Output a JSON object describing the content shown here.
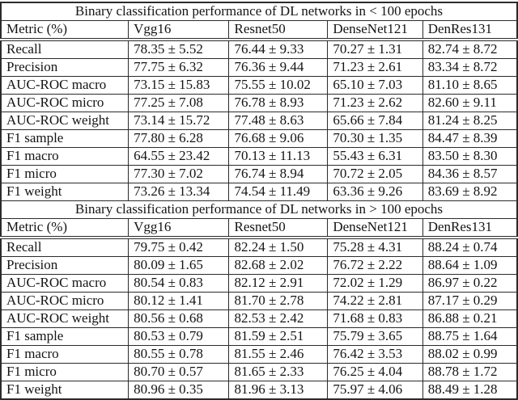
{
  "page": {
    "background_color": "#ffffff",
    "border_color": "#2b2b2b",
    "text_color": "#141414"
  },
  "tables": [
    {
      "title": "Binary classification performance of DL networks in < 100 epochs",
      "columns": [
        "Metric (%)",
        "Vgg16",
        "Resnet50",
        "DenseNet121",
        "DenRes131"
      ],
      "rows": [
        [
          "Recall",
          "78.35 ± 5.52",
          "76.44 ± 9.33",
          "70.27 ± 1.31",
          "82.74 ± 8.72"
        ],
        [
          "Precision",
          "77.75 ± 6.32",
          "76.36 ± 9.44",
          "71.23 ± 2.61",
          "83.34 ± 8.72"
        ],
        [
          "AUC-ROC macro",
          "73.15 ± 15.83",
          "75.55 ± 10.02",
          "65.10 ± 7.03",
          "81.10 ± 8.65"
        ],
        [
          "AUC-ROC micro",
          "77.25 ± 7.08",
          "76.78 ± 8.93",
          "71.23 ± 2.62",
          "82.60 ± 9.11"
        ],
        [
          "AUC-ROC weight",
          "73.14 ± 15.72",
          "77.48 ± 8.63",
          "65.66 ± 7.84",
          "81.24 ± 8.25"
        ],
        [
          "F1 sample",
          "77.80 ± 6.28",
          "76.68 ± 9.06",
          "70.30 ± 1.35",
          "84.47 ± 8.39"
        ],
        [
          "F1 macro",
          "64.55 ± 23.42",
          "70.13 ± 11.13",
          "55.43 ± 6.31",
          "83.50 ± 8.30"
        ],
        [
          "F1 micro",
          "77.30 ± 7.02",
          "76.74 ± 8.94",
          "70.72 ± 2.05",
          "84.36 ± 8.57"
        ],
        [
          "F1 weight",
          "73.26 ± 13.34",
          "74.54 ± 11.49",
          "63.36 ± 9.26",
          "83.69 ± 8.92"
        ]
      ]
    },
    {
      "title": "Binary classification performance of DL networks in > 100 epochs",
      "columns": [
        "Metric (%)",
        "Vgg16",
        "Resnet50",
        "DenseNet121",
        "DenRes131"
      ],
      "rows": [
        [
          "Recall",
          "79.75 ± 0.42",
          "82.24 ± 1.50",
          "75.28 ± 4.31",
          "88.24 ± 0.74"
        ],
        [
          "Precision",
          "80.09 ± 1.65",
          "82.68 ± 2.02",
          "76.72 ± 2.22",
          "88.64 ± 1.09"
        ],
        [
          "AUC-ROC macro",
          "80.54 ± 0.83",
          "82.12 ± 2.91",
          "72.02 ± 1.29",
          "86.97 ± 0.22"
        ],
        [
          "AUC-ROC micro",
          "80.12 ± 1.41",
          "81.70 ± 2.78",
          "74.22 ± 2.81",
          "87.17 ± 0.29"
        ],
        [
          "AUC-ROC weight",
          "80.56 ± 0.68",
          "82.53 ± 2.42",
          "71.68 ± 0.83",
          "86.88 ± 0.21"
        ],
        [
          "F1 sample",
          "80.53 ± 0.79",
          "81.59 ± 2.51",
          "75.79 ± 3.65",
          "88.75 ± 1.64"
        ],
        [
          "F1 macro",
          "80.55 ± 0.78",
          "81.55 ± 2.46",
          "76.42 ± 3.53",
          "88.02 ± 0.99"
        ],
        [
          "F1 micro",
          "80.70 ± 0.57",
          "81.65 ± 2.33",
          "76.25 ± 4.04",
          "88.78 ± 1.72"
        ],
        [
          "F1 weight",
          "80.96 ± 0.35",
          "81.96 ± 3.13",
          "75.97 ± 4.06",
          "88.49 ± 1.28"
        ]
      ]
    }
  ]
}
